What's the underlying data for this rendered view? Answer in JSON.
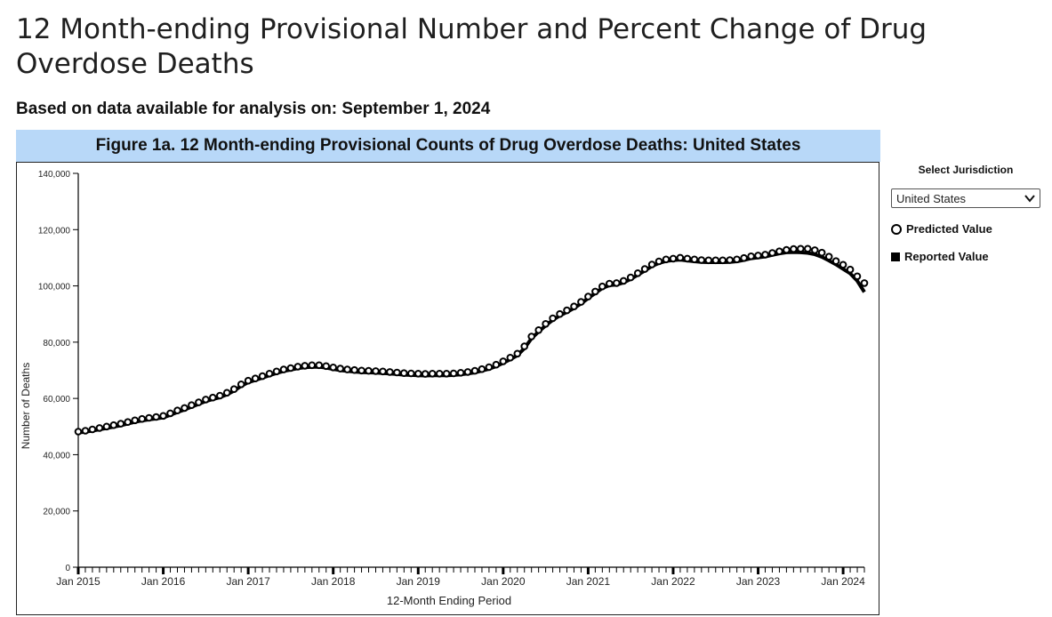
{
  "page": {
    "title": "12 Month-ending Provisional Number and Percent Change of Drug Overdose Deaths",
    "subtitle": "Based on data available for analysis on: September 1, 2024"
  },
  "figure": {
    "banner": "Figure 1a. 12 Month-ending Provisional Counts of Drug Overdose Deaths: United States"
  },
  "sidebar": {
    "jurisdiction_label": "Select Jurisdiction",
    "jurisdiction_value": "United States",
    "legend": [
      {
        "label": "Predicted Value",
        "icon": "open-circle-icon"
      },
      {
        "label": "Reported Value",
        "icon": "filled-square-icon"
      }
    ]
  },
  "chart_data": {
    "type": "line",
    "xlabel": "12-Month Ending Period",
    "ylabel": "Number of Deaths",
    "ylim": [
      0,
      140000
    ],
    "yticks": [
      0,
      20000,
      40000,
      60000,
      80000,
      100000,
      120000,
      140000
    ],
    "ytick_labels": [
      "0",
      "20,000",
      "40,000",
      "60,000",
      "80,000",
      "100,000",
      "120,000",
      "140,000"
    ],
    "xtick_labels": [
      "Jan 2015",
      "Jan 2016",
      "Jan 2017",
      "Jan 2018",
      "Jan 2019",
      "Jan 2020",
      "Jan 2021",
      "Jan 2022",
      "Jan 2023",
      "Jan 2024"
    ],
    "x_start": "Jan 2015",
    "x_end": "Apr 2024",
    "series": [
      {
        "name": "Predicted Value",
        "marker": "open-circle",
        "values": [
          48200,
          48500,
          49000,
          49500,
          50000,
          50500,
          51000,
          51600,
          52200,
          52700,
          53100,
          53400,
          53800,
          54700,
          55700,
          56600,
          57600,
          58600,
          59600,
          60300,
          61000,
          62000,
          63300,
          65000,
          66300,
          67100,
          67900,
          68800,
          69600,
          70300,
          70800,
          71300,
          71600,
          71800,
          71800,
          71500,
          71000,
          70600,
          70300,
          70100,
          69900,
          69800,
          69700,
          69600,
          69400,
          69200,
          69000,
          68900,
          68800,
          68700,
          68800,
          68800,
          68800,
          68900,
          69100,
          69400,
          69800,
          70400,
          71100,
          72000,
          73200,
          74500,
          75900,
          78500,
          82000,
          84300,
          86500,
          88500,
          90000,
          91300,
          92700,
          94300,
          96200,
          98000,
          99800,
          100800,
          101000,
          101800,
          103000,
          104500,
          106000,
          107600,
          108700,
          109400,
          109700,
          110000,
          109700,
          109400,
          109200,
          109100,
          109100,
          109100,
          109200,
          109400,
          109900,
          110500,
          110800,
          111100,
          111700,
          112300,
          112800,
          113100,
          113200,
          113200,
          112700,
          111800,
          110400,
          108800,
          107500,
          105800,
          103400,
          101000
        ]
      },
      {
        "name": "Reported Value",
        "marker": "line",
        "values": [
          47800,
          48100,
          48500,
          49000,
          49400,
          49900,
          50400,
          51000,
          51600,
          52100,
          52500,
          52800,
          53200,
          54100,
          55100,
          56000,
          57000,
          58000,
          59000,
          59700,
          60400,
          61400,
          62700,
          64400,
          65700,
          66500,
          67300,
          68200,
          69000,
          69700,
          70200,
          70700,
          71000,
          71200,
          71200,
          70900,
          70400,
          70000,
          69700,
          69500,
          69300,
          69200,
          69100,
          69000,
          68800,
          68600,
          68400,
          68300,
          68200,
          68100,
          68200,
          68200,
          68200,
          68300,
          68500,
          68800,
          69200,
          69800,
          70500,
          71400,
          72600,
          73900,
          75300,
          77800,
          81300,
          83700,
          85900,
          87900,
          89400,
          90700,
          92100,
          93700,
          95600,
          97400,
          99200,
          100200,
          100400,
          101200,
          102400,
          103900,
          105400,
          107000,
          108100,
          108800,
          109100,
          109300,
          109000,
          108700,
          108500,
          108400,
          108400,
          108400,
          108500,
          108700,
          109200,
          109800,
          110100,
          110400,
          111000,
          111500,
          111900,
          112000,
          111900,
          111700,
          111200,
          110300,
          109000,
          107600,
          106000,
          104400,
          101800,
          97800
        ]
      }
    ]
  }
}
